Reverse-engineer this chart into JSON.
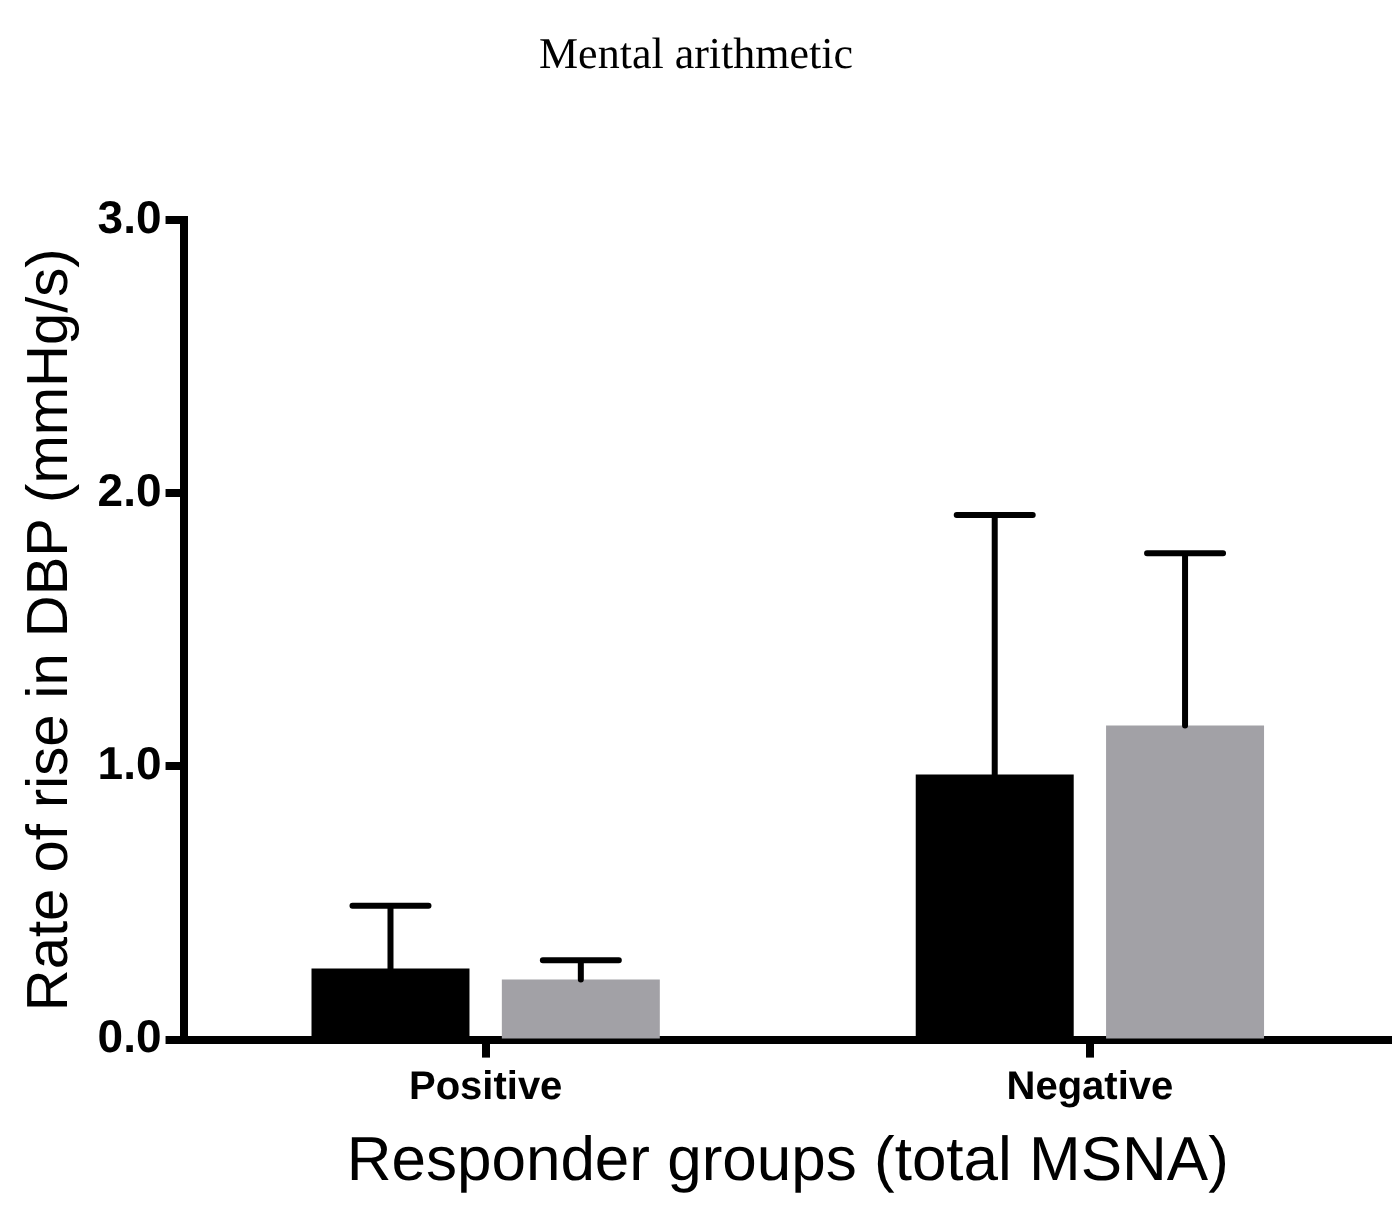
{
  "chart_data": {
    "type": "bar",
    "title": "Mental arithmetic",
    "xlabel": "Responder groups (total MSNA)",
    "ylabel": "Rate of rise in DBP (mmHg/s)",
    "categories": [
      "Positive",
      "Negative"
    ],
    "series": [
      {
        "color": "#000000",
        "values": [
          0.26,
          0.97
        ],
        "errors": [
          [
            0.26,
            0.49
          ],
          [
            0.97,
            1.92
          ]
        ]
      },
      {
        "color": "#a2a1a6",
        "values": [
          0.22,
          1.15
        ],
        "errors": [
          [
            0.22,
            0.29
          ],
          [
            1.15,
            1.78
          ]
        ]
      }
    ],
    "ylim": [
      0,
      3
    ],
    "yticks": [
      {
        "value": 0,
        "label": "0.0"
      },
      {
        "value": 1,
        "label": "1.0"
      },
      {
        "value": 2,
        "label": "2.0"
      },
      {
        "value": 3,
        "label": "3.0"
      }
    ],
    "grid": false,
    "legend": false
  }
}
